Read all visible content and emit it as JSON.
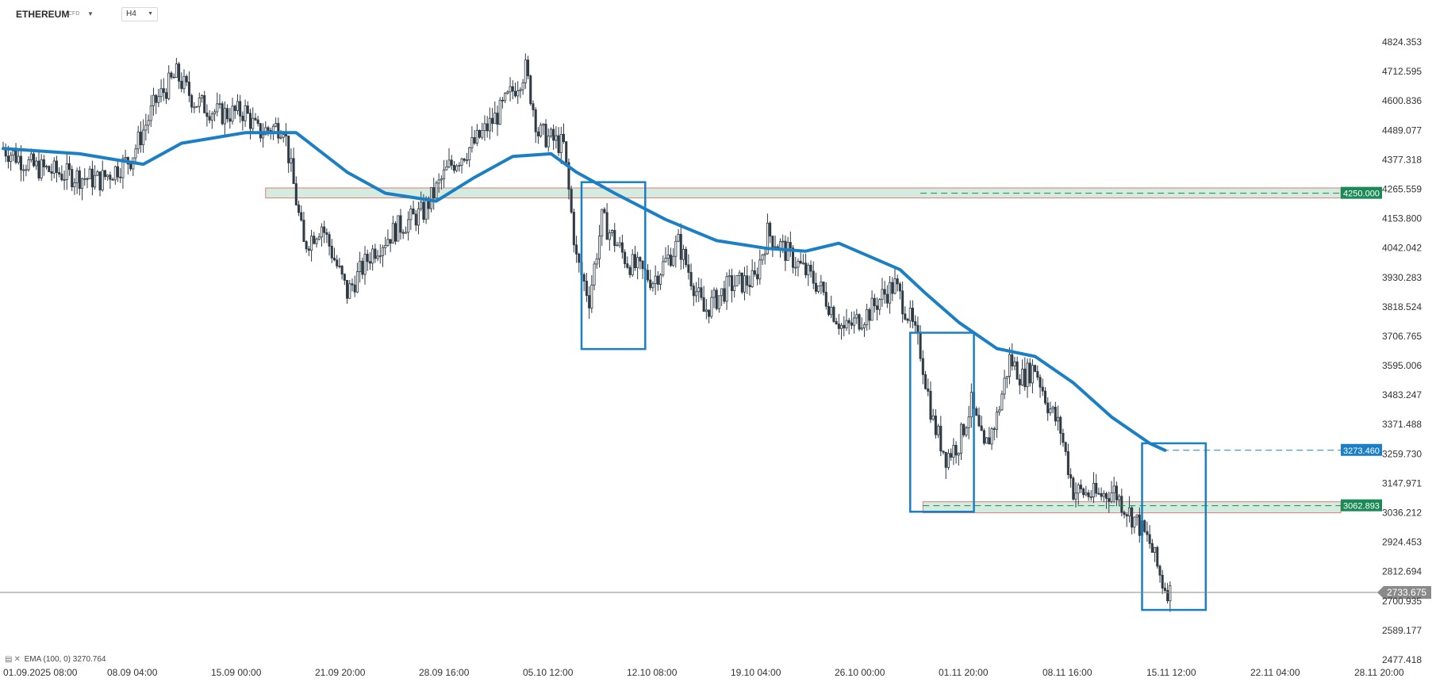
{
  "instrument": {
    "symbol": "ETHEREUM",
    "type": "CFD",
    "timeframe": "H4"
  },
  "indicator": {
    "label": "EMA (100, 0) 3270.764",
    "color": "#1a7fc4"
  },
  "chart_data": {
    "type": "candlestick",
    "y_ticks": [
      "4824.353",
      "4712.595",
      "4600.836",
      "4489.077",
      "4377.318",
      "4265.559",
      "4153.800",
      "4042.042",
      "3930.283",
      "3818.524",
      "3706.765",
      "3595.006",
      "3483.247",
      "3371.488",
      "3259.730",
      "3147.971",
      "3036.212",
      "2924.453",
      "2812.694",
      "2700.935",
      "2589.177",
      "2477.418"
    ],
    "ylim": [
      2477.418,
      4824.353
    ],
    "x_ticks": [
      "01.09.2025  08:00",
      "08.09  04:00",
      "15.09  00:00",
      "21.09  20:00",
      "28.09  16:00",
      "05.10  12:00",
      "12.10  08:00",
      "19.10  04:00",
      "26.10  00:00",
      "01.11  20:00",
      "08.11  16:00",
      "15.11  12:00",
      "22.11  04:00",
      "28.11  20:00"
    ],
    "x_range_bars": [
      0,
      525
    ],
    "close_path": [
      [
        0,
        4420
      ],
      [
        12,
        4350
      ],
      [
        25,
        4320
      ],
      [
        38,
        4300
      ],
      [
        50,
        4380
      ],
      [
        60,
        4600
      ],
      [
        68,
        4700
      ],
      [
        75,
        4600
      ],
      [
        85,
        4550
      ],
      [
        95,
        4560
      ],
      [
        100,
        4480
      ],
      [
        110,
        4510
      ],
      [
        118,
        4050
      ],
      [
        125,
        4130
      ],
      [
        135,
        3870
      ],
      [
        145,
        4030
      ],
      [
        155,
        4120
      ],
      [
        165,
        4180
      ],
      [
        175,
        4350
      ],
      [
        185,
        4440
      ],
      [
        195,
        4560
      ],
      [
        205,
        4720
      ],
      [
        210,
        4480
      ],
      [
        220,
        4430
      ],
      [
        225,
        4000
      ],
      [
        230,
        3850
      ],
      [
        235,
        4150
      ],
      [
        245,
        3990
      ],
      [
        255,
        3920
      ],
      [
        265,
        4060
      ],
      [
        275,
        3800
      ],
      [
        285,
        3900
      ],
      [
        295,
        3920
      ],
      [
        300,
        4100
      ],
      [
        310,
        4000
      ],
      [
        320,
        3900
      ],
      [
        330,
        3730
      ],
      [
        340,
        3800
      ],
      [
        345,
        3860
      ],
      [
        350,
        3900
      ],
      [
        356,
        3770
      ],
      [
        360,
        3650
      ],
      [
        365,
        3380
      ],
      [
        370,
        3250
      ],
      [
        375,
        3300
      ],
      [
        380,
        3450
      ],
      [
        385,
        3270
      ],
      [
        390,
        3400
      ],
      [
        395,
        3620
      ],
      [
        400,
        3550
      ],
      [
        405,
        3590
      ],
      [
        410,
        3450
      ],
      [
        415,
        3350
      ],
      [
        420,
        3120
      ],
      [
        430,
        3100
      ],
      [
        436,
        3120
      ],
      [
        440,
        3060
      ],
      [
        445,
        3000
      ],
      [
        450,
        2920
      ],
      [
        455,
        2770
      ],
      [
        458,
        2733.675
      ]
    ],
    "ema100": [
      [
        0,
        4420
      ],
      [
        30,
        4400
      ],
      [
        55,
        4360
      ],
      [
        70,
        4440
      ],
      [
        95,
        4480
      ],
      [
        115,
        4480
      ],
      [
        135,
        4330
      ],
      [
        150,
        4250
      ],
      [
        170,
        4220
      ],
      [
        185,
        4310
      ],
      [
        200,
        4390
      ],
      [
        215,
        4400
      ],
      [
        225,
        4330
      ],
      [
        240,
        4250
      ],
      [
        260,
        4150
      ],
      [
        280,
        4070
      ],
      [
        300,
        4040
      ],
      [
        315,
        4030
      ],
      [
        328,
        4060
      ],
      [
        340,
        4010
      ],
      [
        352,
        3960
      ],
      [
        362,
        3870
      ],
      [
        375,
        3760
      ],
      [
        390,
        3660
      ],
      [
        405,
        3630
      ],
      [
        420,
        3530
      ],
      [
        435,
        3400
      ],
      [
        450,
        3300
      ],
      [
        456,
        3273.46
      ]
    ],
    "price_markers": [
      {
        "label": "4250.000",
        "value": 4250.0,
        "color": "#1b8a57"
      },
      {
        "label": "3273.460",
        "value": 3273.46,
        "color": "#1a7fc4"
      },
      {
        "label": "3062.893",
        "value": 3062.893,
        "color": "#1b8a57"
      },
      {
        "label": "2733.675",
        "value": 2733.675,
        "color": "#8a8a8a"
      }
    ],
    "zones": [
      {
        "from_bar": 103,
        "to_bar": 525,
        "low": 4232,
        "high": 4270
      },
      {
        "from_bar": 361,
        "to_bar": 525,
        "low": 3036,
        "high": 3078
      }
    ],
    "boxes": [
      {
        "from_bar": 227,
        "to_bar": 252,
        "low": 3658,
        "high": 4292
      },
      {
        "from_bar": 356,
        "to_bar": 381,
        "low": 3040,
        "high": 3720
      },
      {
        "from_bar": 447,
        "to_bar": 472,
        "low": 2667,
        "high": 3300
      }
    ],
    "up_color": "#ffffff",
    "down_color": "#2e3a44",
    "zone_fill": "#d4ecdf",
    "zone_border": "#e07b7b",
    "box_color": "#1a7fc4"
  }
}
